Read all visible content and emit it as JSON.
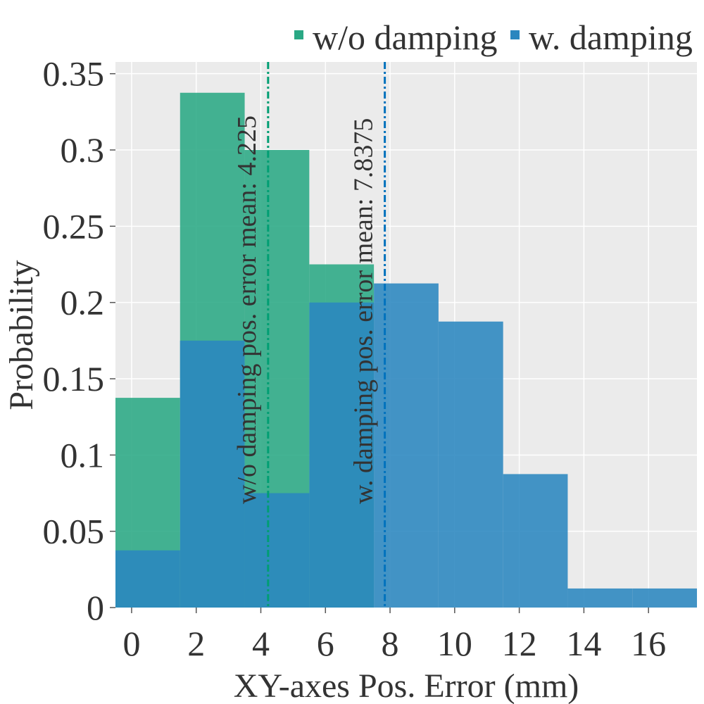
{
  "chart_data": {
    "type": "bar",
    "title": "",
    "xlabel": "XY-axes Pos. Error (mm)",
    "ylabel": "Probability",
    "xlim": [
      -0.5,
      17.5
    ],
    "ylim": [
      0,
      0.36
    ],
    "bin_width": 2,
    "grid": true,
    "legend_position": "top-right",
    "x_ticks": [
      0,
      2,
      4,
      6,
      8,
      10,
      12,
      14,
      16
    ],
    "x_tick_labels": [
      "0",
      "2",
      "4",
      "6",
      "8",
      "10",
      "12",
      "14",
      "16"
    ],
    "y_ticks": [
      0,
      0.05,
      0.1,
      0.15,
      0.2,
      0.25,
      0.3,
      0.35
    ],
    "y_tick_labels": [
      "0",
      "0.05",
      "0.1",
      "0.15",
      "0.2",
      "0.25",
      "0.3",
      "0.35"
    ],
    "series": [
      {
        "name": "w/o damping",
        "color": "#2aa884",
        "bin_starts": [
          -0.5,
          1.5,
          3.5,
          5.5
        ],
        "values": [
          0.1375,
          0.3375,
          0.3,
          0.225
        ],
        "mean": 4.225,
        "mean_color": "#009e73",
        "annotation": "w/o damping pos. error mean: 4.225"
      },
      {
        "name": "w. damping",
        "color": "#2a86bf",
        "bin_starts": [
          -0.5,
          1.5,
          3.5,
          5.5,
          7.5,
          9.5,
          11.5,
          13.5,
          15.5
        ],
        "values": [
          0.0375,
          0.175,
          0.075,
          0.2,
          0.2125,
          0.1875,
          0.0875,
          0.0125,
          0.0125
        ],
        "mean": 7.8375,
        "mean_color": "#0072bd",
        "annotation": "w. damping pos. error mean: 7.8375"
      }
    ]
  }
}
